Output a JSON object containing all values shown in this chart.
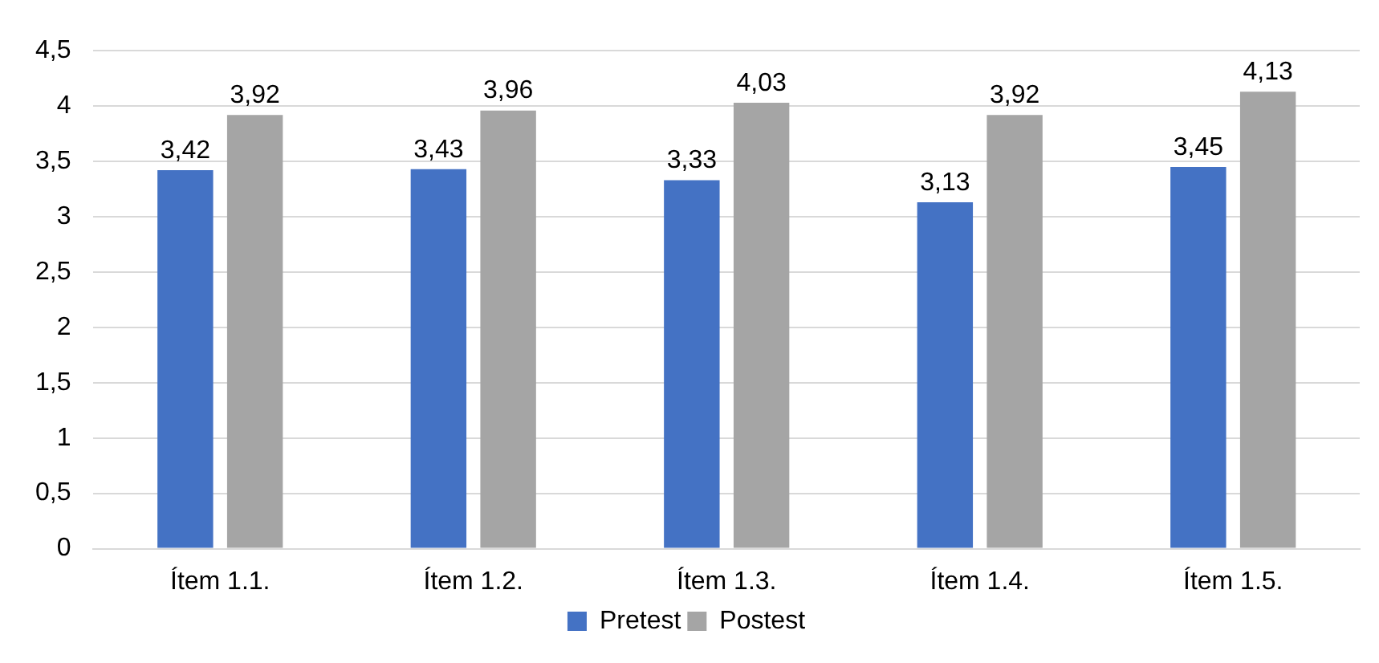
{
  "chart_data": {
    "type": "bar",
    "categories": [
      "Ítem 1.1.",
      "Ítem 1.2.",
      "Ítem 1.3.",
      "Ítem 1.4.",
      "Ítem 1.5."
    ],
    "series": [
      {
        "name": "Pretest",
        "color": "#4472c4",
        "values": [
          3.42,
          3.43,
          3.33,
          3.13,
          3.45
        ],
        "value_labels": [
          "3,42",
          "3,43",
          "3,33",
          "3,13",
          "3,45"
        ]
      },
      {
        "name": "Postest",
        "color": "#a5a5a5",
        "values": [
          3.92,
          3.96,
          4.03,
          3.92,
          4.13
        ],
        "value_labels": [
          "3,92",
          "3,96",
          "4,03",
          "3,92",
          "4,13"
        ]
      }
    ],
    "ylim": [
      0,
      4.5
    ],
    "yticks": [
      0,
      {
        "value": 0.5,
        "label": "0,5"
      },
      1,
      {
        "value": 1.5,
        "label": "1,5"
      },
      2,
      {
        "value": 2.5,
        "label": "2,5"
      },
      3,
      {
        "value": 3.5,
        "label": "3,5"
      },
      4,
      {
        "value": 4.5,
        "label": "4,5"
      }
    ],
    "grid": "y",
    "legend": "bottom"
  }
}
